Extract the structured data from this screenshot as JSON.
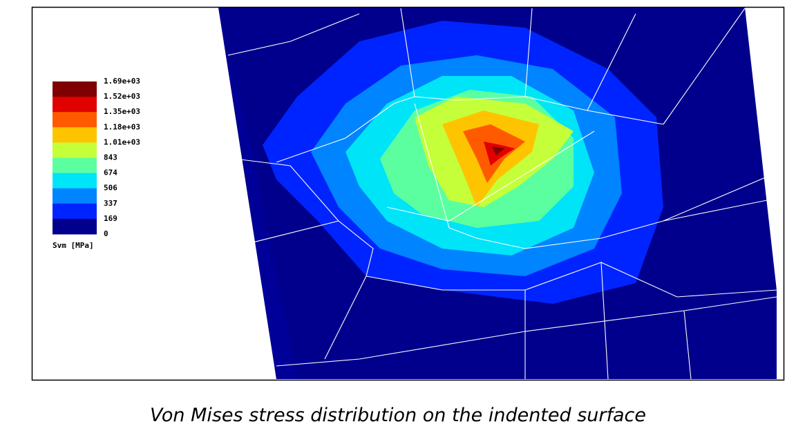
{
  "legend": {
    "labels": [
      "1.69e+03",
      "1.52e+03",
      "1.35e+03",
      "1.18e+03",
      "1.01e+03",
      "843",
      "674",
      "506",
      "337",
      "169",
      "0"
    ],
    "colors": [
      "#7f0000",
      "#e00000",
      "#ff5a00",
      "#ffc400",
      "#c4ff3a",
      "#5cffa0",
      "#00e4f8",
      "#0084ff",
      "#0024ff",
      "#00008c"
    ],
    "title": "Svm [MPa]"
  },
  "caption": "Von Mises stress distribution on the indented surface"
}
